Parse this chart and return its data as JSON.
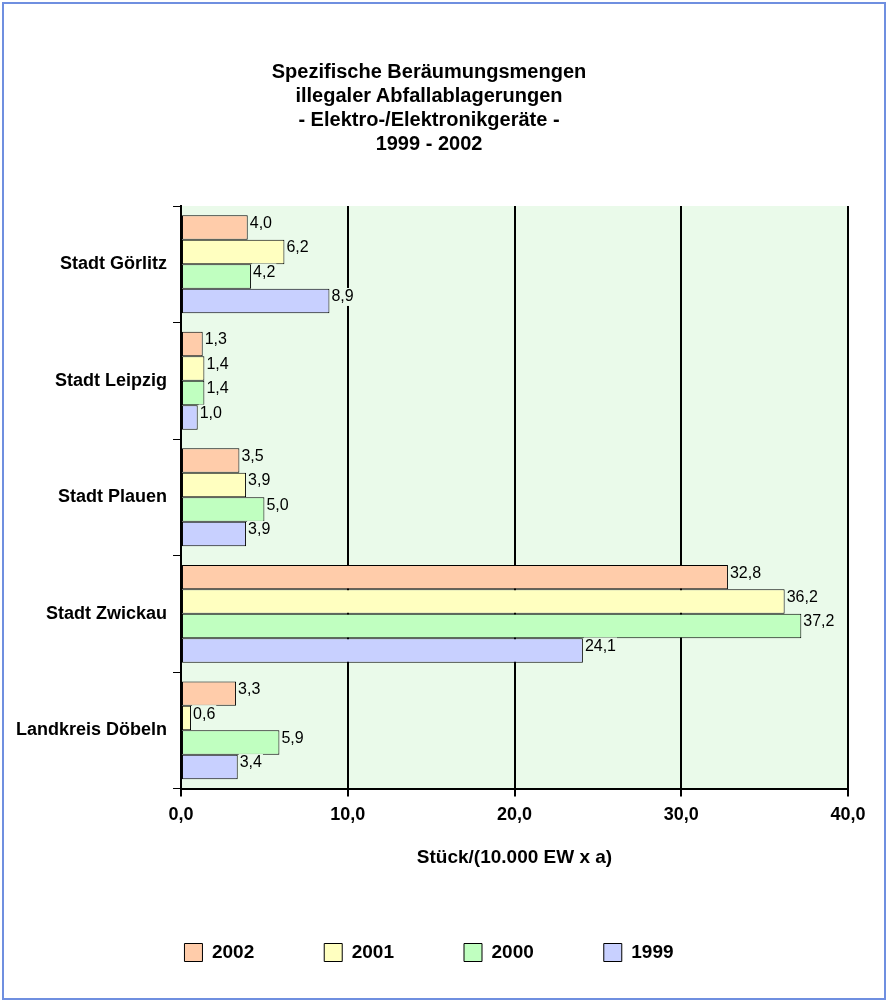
{
  "chart_data": {
    "type": "bar",
    "orientation": "horizontal",
    "title": "Spezifische Beräumungsmengen\nillegaler Abfallablagerungen\n- Elektro-/Elektronikgeräte -\n1999 - 2002",
    "xlabel": "Stück/(10.000 EW x a)",
    "categories": [
      "Stadt Görlitz",
      "Stadt Leipzig",
      "Stadt Plauen",
      "Stadt Zwickau",
      "Landkreis Döbeln"
    ],
    "series": [
      {
        "name": "2002",
        "color": "#ffccaa",
        "values": [
          4.0,
          1.3,
          3.5,
          32.8,
          3.3
        ],
        "value_labels": [
          "4,0",
          "1,3",
          "3,5",
          "32,8",
          "3,3"
        ]
      },
      {
        "name": "2001",
        "color": "#ffffc0",
        "values": [
          6.2,
          1.4,
          3.9,
          36.2,
          0.6
        ],
        "value_labels": [
          "6,2",
          "1,4",
          "3,9",
          "36,2",
          "0,6"
        ]
      },
      {
        "name": "2000",
        "color": "#c0ffc0",
        "values": [
          4.2,
          1.4,
          5.0,
          37.2,
          5.9
        ],
        "value_labels": [
          "4,2",
          "1,4",
          "5,0",
          "37,2",
          "5,9"
        ]
      },
      {
        "name": "1999",
        "color": "#c8d0ff",
        "values": [
          8.9,
          1.0,
          3.9,
          24.1,
          3.4
        ],
        "value_labels": [
          "8,9",
          "1,0",
          "3,9",
          "24,1",
          "3,4"
        ]
      }
    ],
    "xlim": [
      0,
      40
    ],
    "xticks": [
      {
        "value": 0,
        "label": "0,0"
      },
      {
        "value": 10,
        "label": "10,0"
      },
      {
        "value": 20,
        "label": "20,0"
      },
      {
        "value": 30,
        "label": "30,0"
      },
      {
        "value": 40,
        "label": "40,0"
      }
    ],
    "grid": "x",
    "legend": "bottom"
  }
}
